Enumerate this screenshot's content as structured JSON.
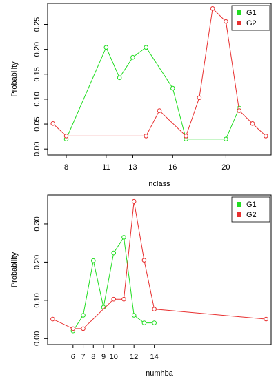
{
  "chart_data": [
    {
      "type": "line",
      "xlabel": "nclass",
      "ylabel": "Probability",
      "xlim": [
        6.6,
        23.4
      ],
      "ylim": [
        0,
        0.28
      ],
      "x_ticks": [
        8,
        11,
        13,
        16,
        20
      ],
      "y_ticks": [
        0.0,
        0.05,
        0.1,
        0.15,
        0.2,
        0.25
      ],
      "legend_position": "top-right",
      "series": [
        {
          "name": "G1",
          "color": "#22dd22",
          "x": [
            8,
            11,
            12,
            13,
            14,
            16,
            17,
            20,
            21
          ],
          "y": [
            0.02,
            0.204,
            0.143,
            0.184,
            0.204,
            0.122,
            0.02,
            0.02,
            0.082
          ]
        },
        {
          "name": "G2",
          "color": "#e83030",
          "x": [
            7,
            8,
            14,
            15,
            17,
            18,
            19,
            20,
            21,
            22,
            23
          ],
          "y": [
            0.051,
            0.026,
            0.026,
            0.077,
            0.026,
            0.103,
            0.282,
            0.256,
            0.077,
            0.051,
            0.026
          ]
        }
      ]
    },
    {
      "type": "line",
      "xlabel": "numhba",
      "ylabel": "Probability",
      "xlim": [
        3.5,
        25.5
      ],
      "ylim": [
        0,
        0.36
      ],
      "x_ticks": [
        6,
        7,
        8,
        9,
        10,
        12,
        14
      ],
      "y_ticks": [
        0.0,
        0.1,
        0.2,
        0.3
      ],
      "legend_position": "top-right",
      "series": [
        {
          "name": "G1",
          "color": "#22dd22",
          "x": [
            6,
            7,
            8,
            9,
            10,
            11,
            12,
            13,
            14
          ],
          "y": [
            0.02,
            0.061,
            0.204,
            0.082,
            0.224,
            0.265,
            0.061,
            0.041,
            0.041
          ]
        },
        {
          "name": "G2",
          "color": "#e83030",
          "x": [
            4,
            6,
            7,
            10,
            11,
            12,
            13,
            14,
            25
          ],
          "y": [
            0.051,
            0.026,
            0.026,
            0.103,
            0.103,
            0.359,
            0.205,
            0.077,
            0.051
          ]
        }
      ]
    }
  ]
}
